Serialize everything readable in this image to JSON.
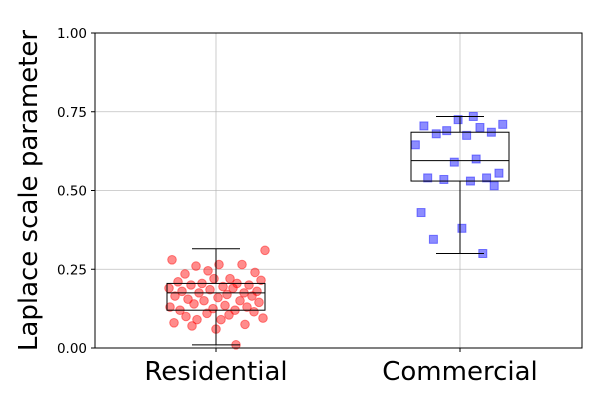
{
  "chart_data": {
    "type": "box",
    "title": "",
    "xlabel": "",
    "ylabel": "Laplace scale parameter",
    "ylim": [
      0.0,
      1.0
    ],
    "yticks": [
      "0.00",
      "0.25",
      "0.50",
      "0.75",
      "1.00"
    ],
    "grid": true,
    "categories": [
      "Residential",
      "Commercial"
    ],
    "series": [
      {
        "category": "Residential",
        "marker": "circle",
        "color": "#ff0000",
        "box": {
          "whisker_low": 0.01,
          "q1": 0.12,
          "median": 0.175,
          "q3": 0.205,
          "whisker_high": 0.315
        },
        "points": [
          0.28,
          0.265,
          0.26,
          0.265,
          0.245,
          0.24,
          0.235,
          0.22,
          0.22,
          0.215,
          0.21,
          0.205,
          0.205,
          0.2,
          0.2,
          0.195,
          0.19,
          0.19,
          0.185,
          0.18,
          0.18,
          0.175,
          0.175,
          0.17,
          0.165,
          0.165,
          0.16,
          0.155,
          0.15,
          0.15,
          0.145,
          0.14,
          0.135,
          0.13,
          0.13,
          0.125,
          0.12,
          0.12,
          0.115,
          0.11,
          0.105,
          0.1,
          0.095,
          0.09,
          0.09,
          0.08,
          0.075,
          0.07,
          0.06,
          0.31,
          0.01
        ]
      },
      {
        "category": "Commercial",
        "marker": "square",
        "color": "#0000ff",
        "box": {
          "whisker_low": 0.3,
          "q1": 0.53,
          "median": 0.595,
          "q3": 0.685,
          "whisker_high": 0.735
        },
        "points": [
          0.735,
          0.725,
          0.71,
          0.705,
          0.7,
          0.69,
          0.685,
          0.68,
          0.675,
          0.645,
          0.6,
          0.59,
          0.555,
          0.54,
          0.54,
          0.535,
          0.53,
          0.515,
          0.43,
          0.38,
          0.345,
          0.3
        ]
      }
    ]
  }
}
